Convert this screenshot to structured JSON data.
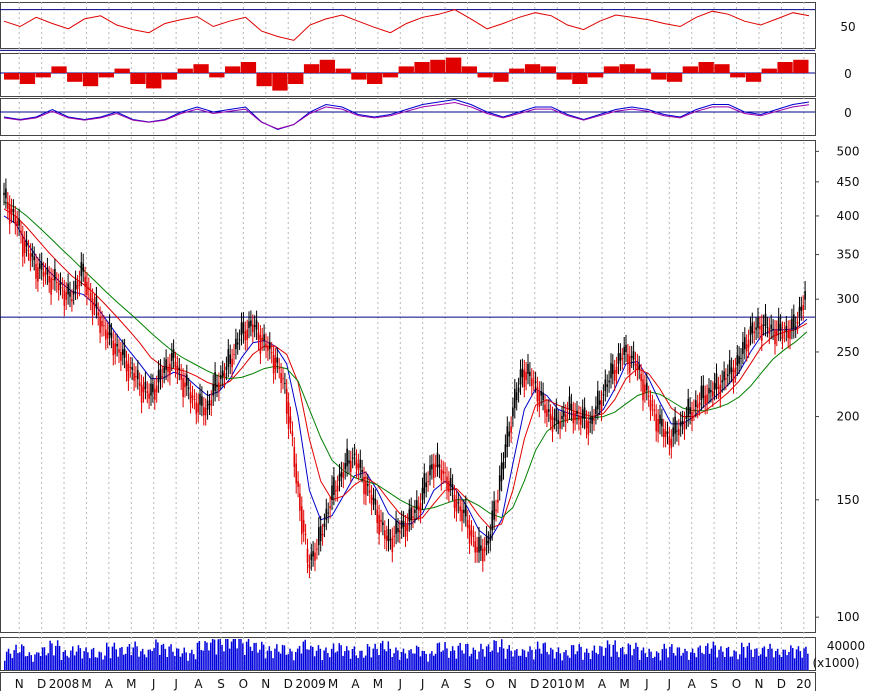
{
  "colors": {
    "background": "#ffffff",
    "frame": "#444444",
    "grid": "#b8b8b8",
    "bull": "#000000",
    "bear": "#e00000",
    "ma_short": "#0000cc",
    "ma_mid": "#e00000",
    "ma_long": "#008000",
    "reference_line": "#000088",
    "rsi_line": "#e00000",
    "macd_hist": "#e00000",
    "osc_line_a": "#0000cc",
    "osc_line_b": "#9900aa",
    "volume": "#0000dd"
  },
  "chart_data": [
    {
      "type": "line",
      "panel": "oscillator-rsi",
      "tick_labels": [
        "50"
      ],
      "reference_levels_shown": 2,
      "values": [
        55,
        48,
        60,
        52,
        45,
        58,
        62,
        50,
        44,
        40,
        52,
        57,
        61,
        48,
        55,
        60,
        42,
        35,
        30,
        50,
        58,
        63,
        55,
        47,
        40,
        52,
        60,
        64,
        70,
        58,
        45,
        52,
        60,
        66,
        62,
        50,
        44,
        55,
        63,
        60,
        57,
        52,
        48,
        60,
        68,
        64,
        55,
        50,
        58,
        66,
        62
      ]
    },
    {
      "type": "bar",
      "panel": "oscillator-macd-histogram",
      "tick_labels": [
        "0"
      ],
      "values": [
        -3,
        -5,
        -2,
        3,
        -4,
        -6,
        -2,
        2,
        -5,
        -7,
        -3,
        2,
        4,
        -2,
        3,
        5,
        -6,
        -8,
        -5,
        4,
        6,
        2,
        -3,
        -5,
        -2,
        3,
        5,
        6,
        7,
        3,
        -2,
        -4,
        2,
        4,
        3,
        -3,
        -5,
        -2,
        3,
        4,
        2,
        -3,
        -4,
        3,
        5,
        4,
        -2,
        -4,
        2,
        5,
        6
      ]
    },
    {
      "type": "line",
      "panel": "oscillator-macd-lines",
      "tick_labels": [
        "0"
      ],
      "values": [
        -2,
        -3,
        -2,
        1,
        -2,
        -3,
        -2,
        0,
        -3,
        -4,
        -3,
        0,
        2,
        0,
        1,
        2,
        -4,
        -7,
        -5,
        0,
        3,
        2,
        -1,
        -2,
        -1,
        1,
        3,
        4,
        5,
        3,
        0,
        -2,
        0,
        2,
        2,
        -1,
        -3,
        -1,
        1,
        2,
        1,
        -1,
        -2,
        1,
        3,
        3,
        0,
        -1,
        1,
        3,
        4
      ]
    },
    {
      "type": "line",
      "panel": "price-candlestick",
      "scale": "log",
      "tick_labels": [
        "500",
        "450",
        "400",
        "350",
        "300",
        "250",
        "200",
        "150",
        "100"
      ],
      "ylim": [
        95,
        520
      ],
      "reference_level": 282,
      "x_tick_labels": [
        "N",
        "D",
        "2008",
        "M",
        "A",
        "M",
        "J",
        "J",
        "A",
        "S",
        "O",
        "N",
        "D",
        "2009",
        "M",
        "A",
        "M",
        "J",
        "J",
        "A",
        "S",
        "O",
        "N",
        "D",
        "2010",
        "M",
        "A",
        "M",
        "J",
        "J",
        "A",
        "S",
        "O",
        "N",
        "D",
        "20"
      ],
      "values": [
        430,
        400,
        360,
        335,
        325,
        315,
        300,
        330,
        295,
        270,
        255,
        240,
        225,
        215,
        230,
        245,
        225,
        210,
        205,
        225,
        240,
        265,
        275,
        260,
        245,
        220,
        160,
        120,
        130,
        150,
        165,
        175,
        160,
        145,
        130,
        135,
        140,
        150,
        170,
        165,
        150,
        140,
        125,
        130,
        160,
        200,
        235,
        225,
        205,
        195,
        205,
        200,
        195,
        215,
        235,
        250,
        240,
        215,
        195,
        185,
        195,
        205,
        215,
        220,
        230,
        240,
        265,
        275,
        270,
        268,
        272,
        305
      ],
      "series": [
        {
          "name": "",
          "values": [
            400,
            390,
            365,
            345,
            330,
            318,
            308,
            305,
            295,
            280,
            265,
            252,
            240,
            228,
            228,
            233,
            230,
            222,
            215,
            218,
            228,
            245,
            258,
            260,
            255,
            240,
            200,
            155,
            140,
            142,
            152,
            163,
            165,
            155,
            143,
            138,
            138,
            143,
            155,
            160,
            155,
            146,
            135,
            131,
            140,
            170,
            205,
            220,
            215,
            205,
            202,
            200,
            198,
            205,
            220,
            240,
            242,
            228,
            210,
            195,
            195,
            200,
            208,
            215,
            223,
            233,
            250,
            265,
            270,
            270,
            271,
            280
          ]
        },
        {
          "name": "",
          "values": [
            410,
            400,
            385,
            368,
            352,
            338,
            325,
            316,
            306,
            294,
            282,
            270,
            258,
            245,
            238,
            236,
            234,
            230,
            225,
            222,
            226,
            236,
            248,
            255,
            255,
            248,
            225,
            185,
            160,
            150,
            152,
            158,
            162,
            158,
            150,
            143,
            140,
            141,
            148,
            155,
            156,
            150,
            142,
            136,
            138,
            155,
            185,
            208,
            212,
            208,
            205,
            202,
            200,
            202,
            212,
            228,
            236,
            232,
            220,
            206,
            200,
            200,
            204,
            210,
            217,
            226,
            240,
            255,
            264,
            268,
            270,
            276
          ]
        },
        {
          "name": "",
          "values": [
            420,
            412,
            400,
            386,
            372,
            358,
            345,
            332,
            320,
            308,
            297,
            287,
            277,
            267,
            258,
            250,
            244,
            239,
            234,
            230,
            228,
            229,
            232,
            236,
            238,
            236,
            226,
            205,
            186,
            172,
            166,
            162,
            160,
            158,
            154,
            150,
            147,
            145,
            146,
            148,
            150,
            150,
            147,
            143,
            141,
            146,
            160,
            178,
            190,
            196,
            198,
            199,
            199,
            200,
            203,
            209,
            215,
            218,
            216,
            211,
            206,
            204,
            204,
            206,
            209,
            214,
            222,
            233,
            244,
            252,
            259,
            268
          ]
        }
      ]
    },
    {
      "type": "bar",
      "panel": "volume",
      "tick_labels": [
        "40000",
        "(x1000)"
      ],
      "values": [
        18,
        22,
        15,
        20,
        25,
        17,
        21,
        19,
        16,
        23,
        20,
        24,
        18,
        26,
        22,
        19,
        17,
        25,
        30,
        28,
        35,
        27,
        24,
        20,
        22,
        18,
        26,
        21,
        19,
        23,
        20,
        17,
        22,
        25,
        19,
        18,
        21,
        16,
        24,
        20,
        23,
        19,
        22,
        26,
        21,
        18,
        20,
        24,
        19,
        17,
        22,
        18,
        21,
        25,
        20,
        23,
        19,
        16,
        22,
        20,
        18,
        21,
        24,
        20,
        17,
        23,
        19,
        22,
        18,
        21,
        20,
        24
      ]
    }
  ]
}
